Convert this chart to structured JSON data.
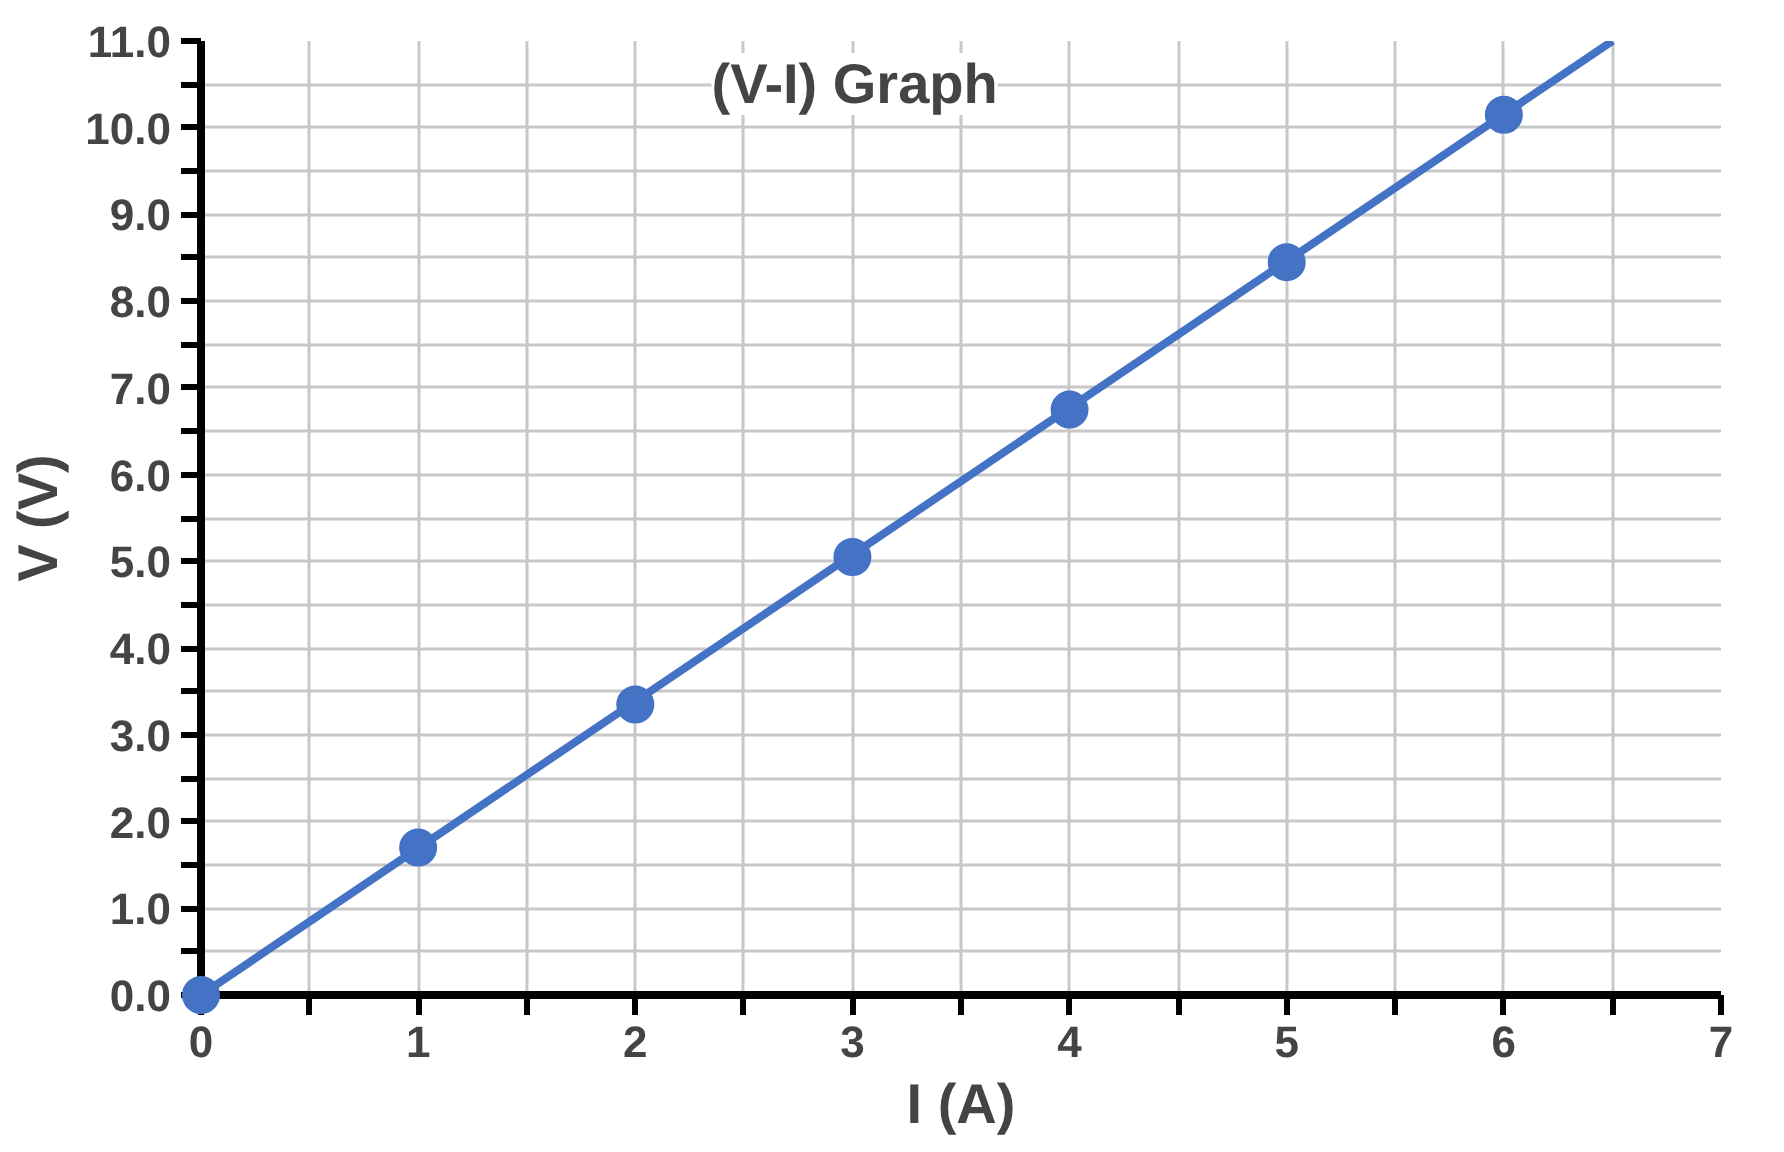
{
  "chart_data": {
    "type": "scatter",
    "title": "(V-I) Graph",
    "xlabel": "I (A)",
    "ylabel": "V (V)",
    "x": [
      0,
      1,
      2,
      3,
      4,
      5,
      6
    ],
    "series": [
      {
        "color": "#4472c4",
        "values": [
          0,
          1.7,
          3.35,
          5.05,
          6.75,
          8.45,
          10.15
        ],
        "marker": "circle"
      },
      {
        "type": "line",
        "color": "#4472c4",
        "x": [
          0,
          6.5
        ],
        "values": [
          0,
          11
        ],
        "marker": "none",
        "line_style": "solid"
      }
    ],
    "xlim": [
      0,
      7
    ],
    "ylim": [
      0,
      11
    ],
    "xticks": [
      0,
      {
        "value": 0.5,
        "label": null
      },
      1,
      {
        "value": 1.5,
        "label": null
      },
      2,
      {
        "value": 2.5,
        "label": null
      },
      3,
      {
        "value": 3.5,
        "label": null
      },
      4,
      {
        "value": 4.5,
        "label": null
      },
      5,
      {
        "value": 5.5,
        "label": null
      },
      6,
      {
        "value": 6.5,
        "label": null
      },
      7
    ],
    "yticks": [
      {
        "value": 0,
        "label": "0.0"
      },
      {
        "value": 0.5,
        "label": null
      },
      {
        "value": 1,
        "label": "1.0"
      },
      {
        "value": 1.5,
        "label": null
      },
      {
        "value": 2,
        "label": "2.0"
      },
      {
        "value": 2.5,
        "label": null
      },
      {
        "value": 3,
        "label": "3.0"
      },
      {
        "value": 3.5,
        "label": null
      },
      {
        "value": 4,
        "label": "4.0"
      },
      {
        "value": 4.5,
        "label": null
      },
      {
        "value": 5,
        "label": "5.0"
      },
      {
        "value": 5.5,
        "label": null
      },
      {
        "value": 6,
        "label": "6.0"
      },
      {
        "value": 6.5,
        "label": null
      },
      {
        "value": 7,
        "label": "7.0"
      },
      {
        "value": 7.5,
        "label": null
      },
      {
        "value": 8,
        "label": "8.0"
      },
      {
        "value": 8.5,
        "label": null
      },
      {
        "value": 9,
        "label": "9.0"
      },
      {
        "value": 9.5,
        "label": null
      },
      {
        "value": 10,
        "label": "10.0"
      },
      {
        "value": 10.5,
        "label": null
      },
      {
        "value": 11,
        "label": "11.0"
      }
    ],
    "grid": true
  }
}
